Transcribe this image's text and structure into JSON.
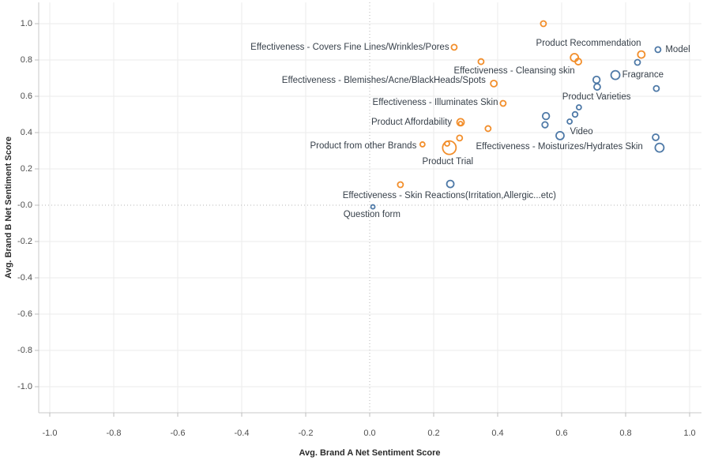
{
  "chart_data": {
    "type": "scatter",
    "title": "",
    "xlabel": "Avg. Brand A Net Sentiment Score",
    "ylabel": "Avg. Brand B Net Sentiment Score",
    "xlim": [
      -1.04,
      1.04
    ],
    "ylim": [
      -1.12,
      1.12
    ],
    "grid": true,
    "zero_lines": "dotted",
    "legend": "none",
    "marker_style": "open-circle",
    "x_ticks": [
      -1.0,
      -0.8,
      -0.6,
      -0.4,
      -0.2,
      0.0,
      0.2,
      0.4,
      0.6,
      0.8,
      1.0
    ],
    "x_tick_labels": [
      "-1.0",
      "-0.8",
      "-0.6",
      "-0.4",
      "-0.2",
      "0.0",
      "0.2",
      "0.4",
      "0.6",
      "0.8",
      "1.0"
    ],
    "y_ticks": [
      1.0,
      0.8,
      0.6,
      0.4,
      0.2,
      0.0,
      -0.2,
      -0.4,
      -0.6,
      -0.8,
      -1.0
    ],
    "y_tick_labels": [
      "1.0",
      "0.8",
      "0.6",
      "0.4",
      "0.2",
      "-0.0",
      "-0.2",
      "-0.4",
      "-0.6",
      "-0.8",
      "-1.0"
    ],
    "series": [
      {
        "name": "orange-markers",
        "color": "#f28e2b",
        "points": [
          {
            "x": 0.543,
            "y": 1.0,
            "r": 3.5
          },
          {
            "x": 0.264,
            "y": 0.87,
            "r": 3.5,
            "label": "Effectiveness - Covers Fine Lines/Wrinkles/Pores"
          },
          {
            "x": 0.348,
            "y": 0.791,
            "r": 3.5,
            "label": "Effectiveness - Cleansing skin"
          },
          {
            "x": 0.64,
            "y": 0.813,
            "r": 5.0,
            "label": "Product Recommendation"
          },
          {
            "x": 0.652,
            "y": 0.791,
            "r": 4.0
          },
          {
            "x": 0.849,
            "y": 0.83,
            "r": 4.5
          },
          {
            "x": 0.388,
            "y": 0.67,
            "r": 4.0,
            "label": "Effectiveness - Blemishes/Acne/BlackHeads/Spots"
          },
          {
            "x": 0.417,
            "y": 0.561,
            "r": 3.5,
            "label": "Effectiveness - Illuminates Skin"
          },
          {
            "x": 0.284,
            "y": 0.457,
            "r": 4.5,
            "label": "Product Affordability"
          },
          {
            "x": 0.284,
            "y": 0.45,
            "r": 2.5
          },
          {
            "x": 0.37,
            "y": 0.422,
            "r": 3.5
          },
          {
            "x": 0.165,
            "y": 0.335,
            "r": 3.0,
            "label": "Product from other Brands"
          },
          {
            "x": 0.281,
            "y": 0.37,
            "r": 3.5
          },
          {
            "x": 0.242,
            "y": 0.339,
            "r": 3.0
          },
          {
            "x": 0.249,
            "y": 0.317,
            "r": 8.5,
            "label": "Product Trial"
          },
          {
            "x": 0.096,
            "y": 0.113,
            "r": 3.5,
            "label": "Effectiveness - Skin Reactions(Irritation,Allergic...etc)"
          }
        ]
      },
      {
        "name": "blue-markers",
        "color": "#4e79a7",
        "points": [
          {
            "x": 0.901,
            "y": 0.857,
            "r": 3.5,
            "label": "Model"
          },
          {
            "x": 0.837,
            "y": 0.787,
            "r": 3.5
          },
          {
            "x": 0.768,
            "y": 0.717,
            "r": 5.5,
            "label": "Fragrance"
          },
          {
            "x": 0.896,
            "y": 0.643,
            "r": 3.5
          },
          {
            "x": 0.709,
            "y": 0.691,
            "r": 4.3,
            "label": "Product Varieties"
          },
          {
            "x": 0.711,
            "y": 0.652,
            "r": 4.0
          },
          {
            "x": 0.654,
            "y": 0.539,
            "r": 3.0
          },
          {
            "x": 0.642,
            "y": 0.5,
            "r": 3.3
          },
          {
            "x": 0.625,
            "y": 0.461,
            "r": 3.0
          },
          {
            "x": 0.551,
            "y": 0.491,
            "r": 4.3
          },
          {
            "x": 0.548,
            "y": 0.443,
            "r": 3.7
          },
          {
            "x": 0.595,
            "y": 0.383,
            "r": 5.0,
            "label": "Video"
          },
          {
            "x": 0.894,
            "y": 0.374,
            "r": 4.0
          },
          {
            "x": 0.906,
            "y": 0.317,
            "r": 5.5,
            "label": "Effectiveness - Moisturizes/Hydrates Skin"
          },
          {
            "x": 0.252,
            "y": 0.117,
            "r": 4.5
          },
          {
            "x": 0.01,
            "y": -0.009,
            "r": 2.5,
            "label": "Question form"
          }
        ]
      }
    ],
    "point_labels": [
      {
        "text": "Effectiveness - Covers Fine Lines/Wrinkles/Pores",
        "x": -0.062,
        "y": 0.87
      },
      {
        "text": "Product Recommendation",
        "x": 0.684,
        "y": 0.891
      },
      {
        "text": "Model",
        "x": 0.963,
        "y": 0.857
      },
      {
        "text": "Effectiveness - Cleansing skin",
        "x": 0.452,
        "y": 0.739
      },
      {
        "text": "Fragrance",
        "x": 0.854,
        "y": 0.717
      },
      {
        "text": "Effectiveness - Blemishes/Acne/BlackHeads/Spots",
        "x": 0.044,
        "y": 0.687
      },
      {
        "text": "Product Varieties",
        "x": 0.709,
        "y": 0.596
      },
      {
        "text": "Effectiveness - Illuminates Skin",
        "x": 0.205,
        "y": 0.565
      },
      {
        "text": "Product Affordability",
        "x": 0.131,
        "y": 0.457
      },
      {
        "text": "Video",
        "x": 0.662,
        "y": 0.404
      },
      {
        "text": "Effectiveness - Moisturizes/Hydrates Skin",
        "x": 0.593,
        "y": 0.322
      },
      {
        "text": "Product from other Brands",
        "x": -0.02,
        "y": 0.326
      },
      {
        "text": "Product Trial",
        "x": 0.244,
        "y": 0.239
      },
      {
        "text": "Effectiveness - Skin Reactions(Irritation,Allergic...etc)",
        "x": 0.249,
        "y": 0.052
      },
      {
        "text": "Question form",
        "x": 0.007,
        "y": -0.052
      }
    ]
  },
  "style_colors": {
    "background": "#ffffff",
    "gridline": "#ebebeb",
    "zero_line": "#b5b5b5",
    "axis_line": "#c8c8c8",
    "tick_mark": "#bcbcbc",
    "tick_text": "#4e4e4e",
    "label_text": "#37404a",
    "axis_title_text": "#2b2b2b",
    "orange": "#f28e2b",
    "blue": "#4e79a7"
  }
}
